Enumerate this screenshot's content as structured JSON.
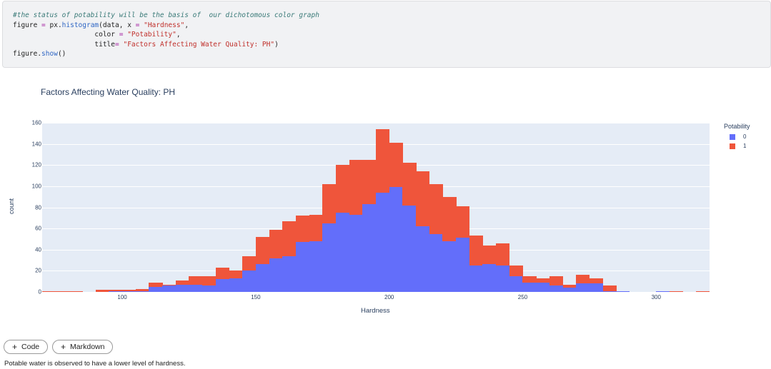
{
  "code_cell": {
    "lines": [
      [
        {
          "t": "#the status of potability will be the basis of  our dichotomous color graph",
          "c": "comment"
        }
      ],
      [
        {
          "t": "figure ",
          "c": ""
        },
        {
          "t": "=",
          "c": "op"
        },
        {
          "t": " px.",
          "c": ""
        },
        {
          "t": "histogram",
          "c": "fn"
        },
        {
          "t": "(data, x ",
          "c": ""
        },
        {
          "t": "=",
          "c": "op"
        },
        {
          "t": " ",
          "c": ""
        },
        {
          "t": "\"Hardness\"",
          "c": "str"
        },
        {
          "t": ",",
          "c": ""
        }
      ],
      [
        {
          "t": "                    color ",
          "c": ""
        },
        {
          "t": "=",
          "c": "op"
        },
        {
          "t": " ",
          "c": ""
        },
        {
          "t": "\"Potability\"",
          "c": "str"
        },
        {
          "t": ",",
          "c": ""
        }
      ],
      [
        {
          "t": "                    title",
          "c": ""
        },
        {
          "t": "=",
          "c": "op"
        },
        {
          "t": " ",
          "c": ""
        },
        {
          "t": "\"Factors Affecting Water Quality: PH\"",
          "c": "str"
        },
        {
          "t": ")",
          "c": ""
        }
      ],
      [
        {
          "t": "figure.",
          "c": ""
        },
        {
          "t": "show",
          "c": "fn"
        },
        {
          "t": "()",
          "c": ""
        }
      ]
    ]
  },
  "chart_data": {
    "type": "bar",
    "subtype": "stacked histogram",
    "title": "Factors Affecting Water Quality: PH",
    "xlabel": "Hardness",
    "ylabel": "count",
    "bin_width": 5,
    "bin_starts": [
      70,
      75,
      80,
      85,
      90,
      95,
      100,
      105,
      110,
      115,
      120,
      125,
      130,
      135,
      140,
      145,
      150,
      155,
      160,
      165,
      170,
      175,
      180,
      185,
      190,
      195,
      200,
      205,
      210,
      215,
      220,
      225,
      230,
      235,
      240,
      245,
      250,
      255,
      260,
      265,
      270,
      275,
      280,
      285,
      290,
      295,
      300,
      305,
      310,
      315
    ],
    "series": [
      {
        "name": "0",
        "color": "#636efa",
        "values": [
          0,
          0,
          0,
          0,
          0,
          1,
          1,
          1,
          5,
          6,
          7,
          7,
          6,
          12,
          13,
          20,
          26,
          32,
          34,
          47,
          48,
          65,
          75,
          73,
          83,
          94,
          99,
          82,
          62,
          55,
          48,
          51,
          25,
          26,
          25,
          15,
          9,
          9,
          6,
          4,
          8,
          8,
          1,
          1,
          0,
          0,
          1,
          0,
          0,
          0
        ]
      },
      {
        "name": "1",
        "color": "#ef553b",
        "values": [
          1,
          1,
          1,
          0,
          2,
          1,
          1,
          2,
          4,
          1,
          4,
          8,
          9,
          11,
          7,
          14,
          26,
          27,
          33,
          25,
          25,
          37,
          45,
          52,
          42,
          60,
          42,
          40,
          52,
          47,
          42,
          30,
          28,
          18,
          21,
          10,
          6,
          4,
          9,
          3,
          8,
          5,
          5,
          0,
          0,
          0,
          0,
          1,
          0,
          1
        ]
      }
    ],
    "xlim": [
      70,
      320
    ],
    "ylim": [
      0,
      160
    ],
    "x_ticks": [
      100,
      150,
      200,
      250,
      300
    ],
    "y_ticks": [
      0,
      20,
      40,
      60,
      80,
      100,
      120,
      140,
      160
    ],
    "grid": true,
    "legend": {
      "title": "Potability",
      "position": "right",
      "entries": [
        "0",
        "1"
      ]
    }
  },
  "plot": {
    "title": "Factors Affecting Water Quality: PH",
    "xlabel": "Hardness",
    "ylabel": "count",
    "legend_title": "Potability",
    "legend_items": [
      {
        "label": "0",
        "color": "#636efa"
      },
      {
        "label": "1",
        "color": "#ef553b"
      }
    ]
  },
  "toolbar": {
    "add_code_label": "Code",
    "add_markdown_label": "Markdown",
    "plus_icon": "+"
  },
  "markdown_cell": {
    "text": "Potable water is observed to have a lower level of hardness."
  }
}
